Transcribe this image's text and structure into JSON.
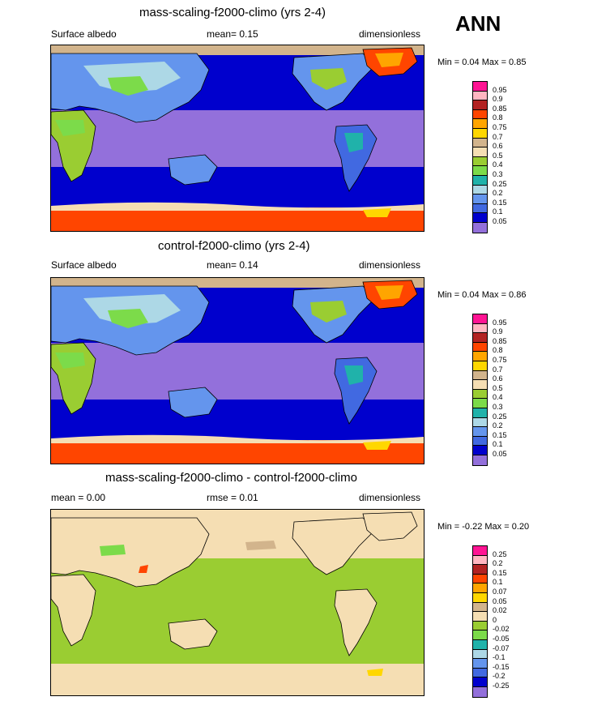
{
  "season": "ANN",
  "panels": [
    {
      "title": "mass-scaling-f2000-climo (yrs 2-4)",
      "left_label": "Surface albedo",
      "mid_label": "mean=  0.15",
      "right_label": "dimensionless",
      "minmax": "Min =  0.04 Max =  0.85",
      "map_type": "albedo",
      "colorbar": {
        "labels": [
          "0.95",
          "0.9",
          "0.85",
          "0.8",
          "0.75",
          "0.7",
          "0.6",
          "0.5",
          "0.4",
          "0.3",
          "0.25",
          "0.2",
          "0.15",
          "0.1",
          "0.05"
        ],
        "colors": [
          "#ff1493",
          "#ffb6c1",
          "#b22222",
          "#ff4500",
          "#ffa500",
          "#ffd700",
          "#d2b48c",
          "#f5deb3",
          "#9acd32",
          "#7cdb4a",
          "#20b2aa",
          "#add8e6",
          "#6495ed",
          "#4169e1",
          "#0000cd",
          "#9370db"
        ]
      }
    },
    {
      "title": "control-f2000-climo (yrs 2-4)",
      "left_label": "Surface albedo",
      "mid_label": "mean=  0.14",
      "right_label": "dimensionless",
      "minmax": "Min =  0.04 Max =  0.86",
      "map_type": "albedo",
      "colorbar": {
        "labels": [
          "0.95",
          "0.9",
          "0.85",
          "0.8",
          "0.75",
          "0.7",
          "0.6",
          "0.5",
          "0.4",
          "0.3",
          "0.25",
          "0.2",
          "0.15",
          "0.1",
          "0.05"
        ],
        "colors": [
          "#ff1493",
          "#ffb6c1",
          "#b22222",
          "#ff4500",
          "#ffa500",
          "#ffd700",
          "#d2b48c",
          "#f5deb3",
          "#9acd32",
          "#7cdb4a",
          "#20b2aa",
          "#add8e6",
          "#6495ed",
          "#4169e1",
          "#0000cd",
          "#9370db"
        ]
      }
    },
    {
      "title": "mass-scaling-f2000-climo - control-f2000-climo",
      "left_label": "mean =   0.00",
      "mid_label": "rmse =  0.01",
      "right_label": "dimensionless",
      "minmax": "Min =  -0.22 Max =  0.20",
      "map_type": "diff",
      "colorbar": {
        "labels": [
          "0.25",
          "0.2",
          "0.15",
          "0.1",
          "0.07",
          "0.05",
          "0.02",
          "0",
          "-0.02",
          "-0.05",
          "-0.07",
          "-0.1",
          "-0.15",
          "-0.2",
          "-0.25"
        ],
        "colors": [
          "#ff1493",
          "#ffb6c1",
          "#b22222",
          "#ff4500",
          "#ffa500",
          "#ffd700",
          "#d2b48c",
          "#f5deb3",
          "#9acd32",
          "#7cdb4a",
          "#20b2aa",
          "#add8e6",
          "#6495ed",
          "#4169e1",
          "#0000cd",
          "#9370db"
        ]
      }
    }
  ]
}
